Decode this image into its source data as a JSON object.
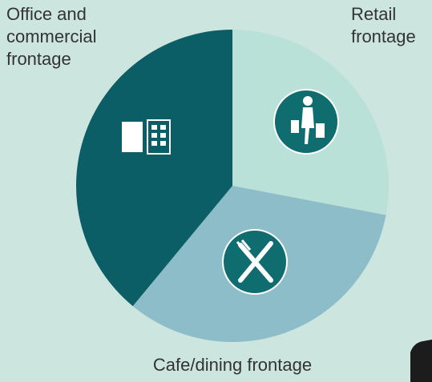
{
  "chart_data": {
    "type": "pie",
    "categories": [
      "Retail frontage",
      "Cafe/dining frontage",
      "Office and commercial frontage"
    ],
    "values": [
      28,
      33,
      39
    ],
    "colors": [
      "#b9e1d7",
      "#8dbdc9",
      "#0b5e66"
    ]
  }
}
